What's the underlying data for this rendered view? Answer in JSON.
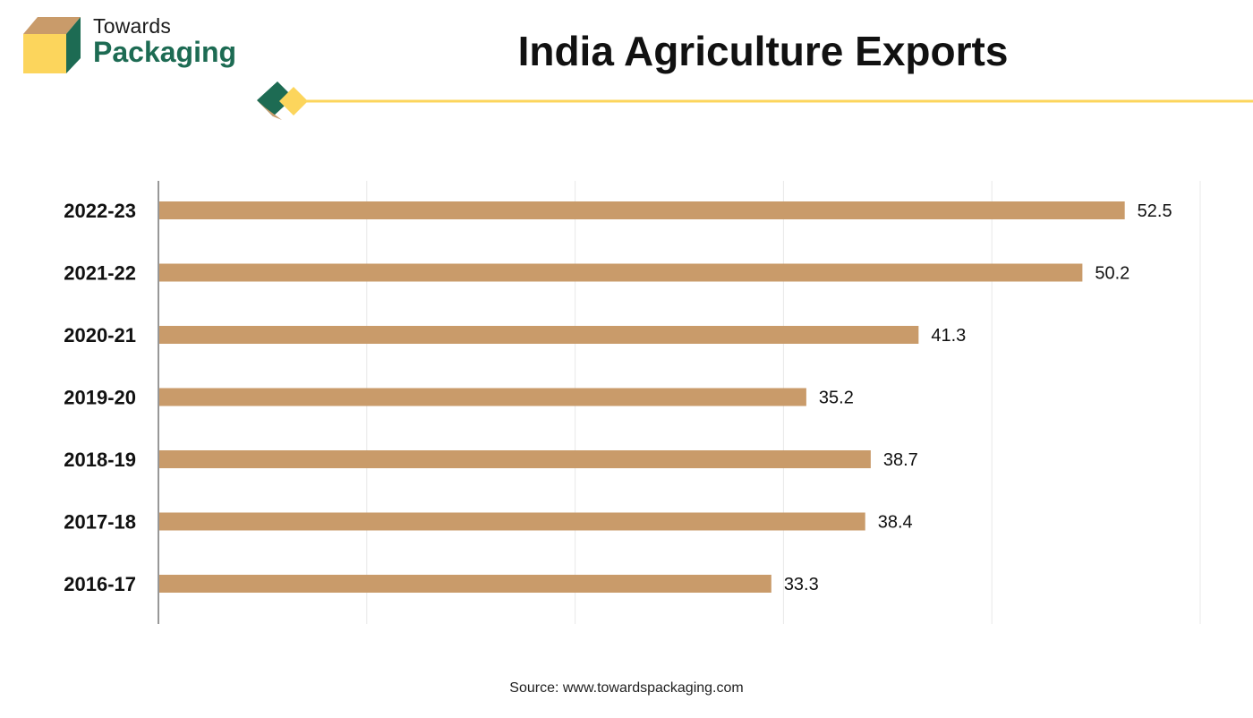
{
  "brand": {
    "line1": "Towards",
    "line2": "Packaging",
    "green": "#1d6b53",
    "tan": "#c99b6a",
    "yellow": "#fcd55c"
  },
  "chart_data": {
    "type": "bar",
    "orientation": "horizontal",
    "title": "India Agriculture Exports",
    "categories": [
      "2022-23",
      "2021-22",
      "2020-21",
      "2019-20",
      "2018-19",
      "2017-18",
      "2016-17"
    ],
    "values": [
      52.5,
      50.2,
      41.3,
      35.2,
      38.7,
      38.4,
      33.3
    ],
    "xlim": [
      0,
      56.6
    ],
    "grid": true,
    "bar_color": "#c99b6a",
    "source": "Source: www.towardspackaging.com"
  }
}
